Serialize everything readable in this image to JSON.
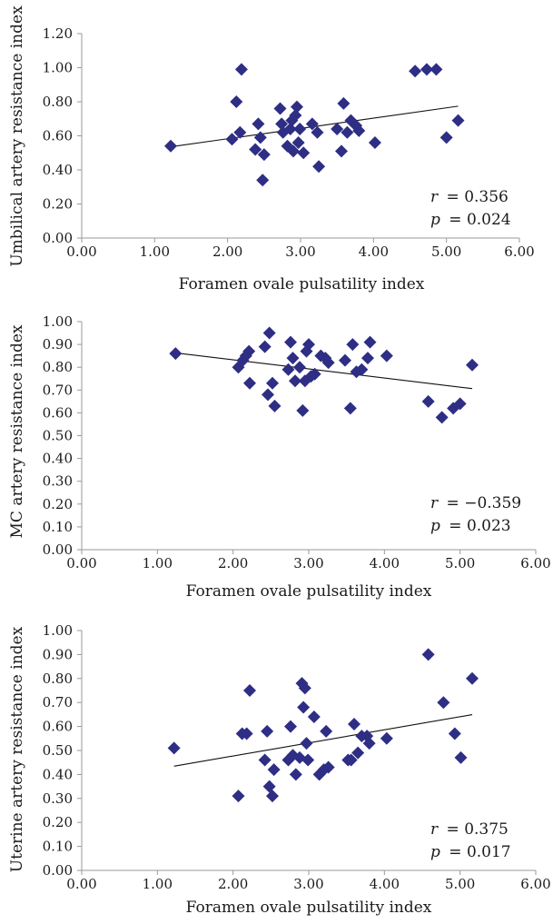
{
  "chart_data": [
    {
      "type": "scatter",
      "xlabel": "Foramen ovale pulsatility index",
      "ylabel": "Umbilical artery resistance index",
      "xlim": [
        0,
        6
      ],
      "ylim": [
        0,
        1.2
      ],
      "x_ticks": [
        "0.00",
        "1.00",
        "2.00",
        "3.00",
        "4.00",
        "5.00",
        "6.00"
      ],
      "y_ticks": [
        "0.00",
        "0.20",
        "0.40",
        "0.60",
        "0.80",
        "1.00",
        "1.20"
      ],
      "marker_color": "#2e2e85",
      "trendline": "linear",
      "stats": {
        "r_label": "r",
        "r_value": "= 0.356",
        "p_label": "p",
        "p_value": "= 0.024"
      },
      "points": [
        {
          "x": 1.22,
          "y": 0.54
        },
        {
          "x": 2.06,
          "y": 0.58
        },
        {
          "x": 2.12,
          "y": 0.8
        },
        {
          "x": 2.17,
          "y": 0.62
        },
        {
          "x": 2.19,
          "y": 0.99
        },
        {
          "x": 2.38,
          "y": 0.52
        },
        {
          "x": 2.42,
          "y": 0.67
        },
        {
          "x": 2.45,
          "y": 0.59
        },
        {
          "x": 2.48,
          "y": 0.34
        },
        {
          "x": 2.5,
          "y": 0.49
        },
        {
          "x": 2.72,
          "y": 0.76
        },
        {
          "x": 2.74,
          "y": 0.67
        },
        {
          "x": 2.76,
          "y": 0.62
        },
        {
          "x": 2.82,
          "y": 0.54
        },
        {
          "x": 2.86,
          "y": 0.64
        },
        {
          "x": 2.88,
          "y": 0.69
        },
        {
          "x": 2.9,
          "y": 0.51
        },
        {
          "x": 2.93,
          "y": 0.72
        },
        {
          "x": 2.95,
          "y": 0.77
        },
        {
          "x": 2.97,
          "y": 0.56
        },
        {
          "x": 2.99,
          "y": 0.64
        },
        {
          "x": 3.04,
          "y": 0.5
        },
        {
          "x": 3.16,
          "y": 0.67
        },
        {
          "x": 3.23,
          "y": 0.62
        },
        {
          "x": 3.25,
          "y": 0.42
        },
        {
          "x": 3.5,
          "y": 0.64
        },
        {
          "x": 3.56,
          "y": 0.51
        },
        {
          "x": 3.59,
          "y": 0.79
        },
        {
          "x": 3.64,
          "y": 0.62
        },
        {
          "x": 3.69,
          "y": 0.69
        },
        {
          "x": 3.76,
          "y": 0.66
        },
        {
          "x": 3.8,
          "y": 0.63
        },
        {
          "x": 4.02,
          "y": 0.56
        },
        {
          "x": 4.57,
          "y": 0.98
        },
        {
          "x": 4.73,
          "y": 0.99
        },
        {
          "x": 4.86,
          "y": 0.99
        },
        {
          "x": 5.0,
          "y": 0.59
        },
        {
          "x": 5.16,
          "y": 0.69
        }
      ]
    },
    {
      "type": "scatter",
      "xlabel": "Foramen ovale pulsatility index",
      "ylabel": "MC artery resistance index",
      "xlim": [
        0,
        6
      ],
      "ylim": [
        0,
        1
      ],
      "x_ticks": [
        "0.00",
        "1.00",
        "2.00",
        "3.00",
        "4.00",
        "5.00",
        "6.00"
      ],
      "y_ticks": [
        "0.00",
        "0.10",
        "0.20",
        "0.30",
        "0.40",
        "0.50",
        "0.60",
        "0.70",
        "0.80",
        "0.90",
        "1.00"
      ],
      "marker_color": "#2e2e85",
      "trendline": "linear",
      "stats": {
        "r_label": "r",
        "r_value": "= −0.359",
        "p_label": "p",
        "p_value": "= 0.023"
      },
      "points": [
        {
          "x": 1.24,
          "y": 0.86
        },
        {
          "x": 2.07,
          "y": 0.8
        },
        {
          "x": 2.13,
          "y": 0.83
        },
        {
          "x": 2.17,
          "y": 0.85
        },
        {
          "x": 2.21,
          "y": 0.87
        },
        {
          "x": 2.22,
          "y": 0.73
        },
        {
          "x": 2.42,
          "y": 0.89
        },
        {
          "x": 2.46,
          "y": 0.68
        },
        {
          "x": 2.48,
          "y": 0.95
        },
        {
          "x": 2.52,
          "y": 0.73
        },
        {
          "x": 2.55,
          "y": 0.63
        },
        {
          "x": 2.73,
          "y": 0.79
        },
        {
          "x": 2.76,
          "y": 0.91
        },
        {
          "x": 2.79,
          "y": 0.84
        },
        {
          "x": 2.82,
          "y": 0.74
        },
        {
          "x": 2.88,
          "y": 0.8
        },
        {
          "x": 2.92,
          "y": 0.61
        },
        {
          "x": 2.95,
          "y": 0.74
        },
        {
          "x": 2.97,
          "y": 0.87
        },
        {
          "x": 3.0,
          "y": 0.9
        },
        {
          "x": 3.03,
          "y": 0.76
        },
        {
          "x": 3.08,
          "y": 0.77
        },
        {
          "x": 3.16,
          "y": 0.85
        },
        {
          "x": 3.22,
          "y": 0.84
        },
        {
          "x": 3.26,
          "y": 0.82
        },
        {
          "x": 3.48,
          "y": 0.83
        },
        {
          "x": 3.55,
          "y": 0.62
        },
        {
          "x": 3.58,
          "y": 0.9
        },
        {
          "x": 3.63,
          "y": 0.78
        },
        {
          "x": 3.7,
          "y": 0.79
        },
        {
          "x": 3.78,
          "y": 0.84
        },
        {
          "x": 3.81,
          "y": 0.91
        },
        {
          "x": 4.03,
          "y": 0.85
        },
        {
          "x": 4.58,
          "y": 0.65
        },
        {
          "x": 4.76,
          "y": 0.58
        },
        {
          "x": 4.91,
          "y": 0.62
        },
        {
          "x": 5.0,
          "y": 0.64
        },
        {
          "x": 5.16,
          "y": 0.81
        }
      ]
    },
    {
      "type": "scatter",
      "xlabel": "Foramen ovale pulsatility index",
      "ylabel": "Uterine artery resistance index",
      "xlim": [
        0,
        6
      ],
      "ylim": [
        0,
        1
      ],
      "x_ticks": [
        "0.00",
        "1.00",
        "2.00",
        "3.00",
        "4.00",
        "5.00",
        "6.00"
      ],
      "y_ticks": [
        "0.00",
        "0.10",
        "0.20",
        "0.30",
        "0.40",
        "0.50",
        "0.60",
        "0.70",
        "0.80",
        "0.90",
        "1.00"
      ],
      "marker_color": "#2e2e85",
      "trendline": "linear",
      "stats": {
        "r_label": "r",
        "r_value": "= 0.375",
        "p_label": "p",
        "p_value": "= 0.017"
      },
      "points": [
        {
          "x": 1.22,
          "y": 0.51
        },
        {
          "x": 2.07,
          "y": 0.31
        },
        {
          "x": 2.12,
          "y": 0.57
        },
        {
          "x": 2.18,
          "y": 0.57
        },
        {
          "x": 2.22,
          "y": 0.75
        },
        {
          "x": 2.42,
          "y": 0.46
        },
        {
          "x": 2.45,
          "y": 0.58
        },
        {
          "x": 2.48,
          "y": 0.35
        },
        {
          "x": 2.52,
          "y": 0.31
        },
        {
          "x": 2.54,
          "y": 0.42
        },
        {
          "x": 2.73,
          "y": 0.46
        },
        {
          "x": 2.76,
          "y": 0.6
        },
        {
          "x": 2.79,
          "y": 0.48
        },
        {
          "x": 2.83,
          "y": 0.4
        },
        {
          "x": 2.88,
          "y": 0.47
        },
        {
          "x": 2.91,
          "y": 0.78
        },
        {
          "x": 2.93,
          "y": 0.68
        },
        {
          "x": 2.95,
          "y": 0.76
        },
        {
          "x": 2.97,
          "y": 0.53
        },
        {
          "x": 2.99,
          "y": 0.46
        },
        {
          "x": 3.07,
          "y": 0.64
        },
        {
          "x": 3.14,
          "y": 0.4
        },
        {
          "x": 3.2,
          "y": 0.42
        },
        {
          "x": 3.23,
          "y": 0.58
        },
        {
          "x": 3.26,
          "y": 0.43
        },
        {
          "x": 3.52,
          "y": 0.46
        },
        {
          "x": 3.56,
          "y": 0.46
        },
        {
          "x": 3.6,
          "y": 0.61
        },
        {
          "x": 3.65,
          "y": 0.49
        },
        {
          "x": 3.7,
          "y": 0.56
        },
        {
          "x": 3.77,
          "y": 0.56
        },
        {
          "x": 3.8,
          "y": 0.53
        },
        {
          "x": 4.03,
          "y": 0.55
        },
        {
          "x": 4.58,
          "y": 0.9
        },
        {
          "x": 4.78,
          "y": 0.7
        },
        {
          "x": 4.93,
          "y": 0.57
        },
        {
          "x": 5.01,
          "y": 0.47
        },
        {
          "x": 5.16,
          "y": 0.8
        }
      ]
    }
  ]
}
